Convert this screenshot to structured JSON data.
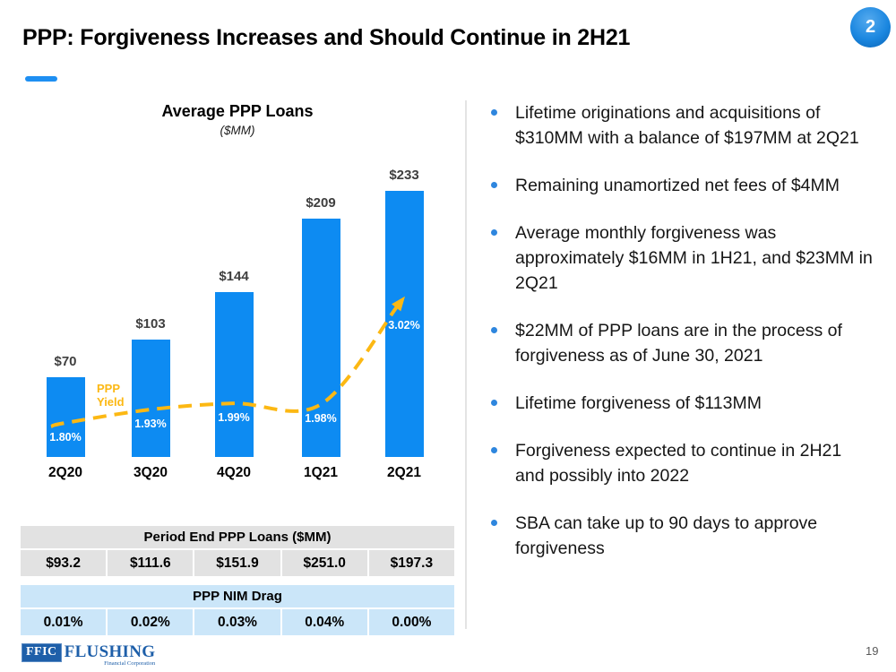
{
  "slide": {
    "title": "PPP: Forgiveness Increases and Should Continue in 2H21",
    "page_badge": "2",
    "page_number": "19"
  },
  "logo": {
    "abbr": "FFIC",
    "name": "FLUSHING",
    "subtitle": "Financial Corporation"
  },
  "colors": {
    "bar_blue": "#0D8BF2",
    "yield_gold": "#FCB813",
    "table1_bg": "#E2E2E2",
    "table2_bg": "#CBE6F9",
    "bullet_blue": "#2E86DE",
    "accent_underline": "#1E8FF2",
    "logo_blue": "#1E5FA9"
  },
  "chart_data": {
    "type": "bar",
    "title": "Average PPP Loans",
    "subtitle": "($MM)",
    "categories": [
      "2Q20",
      "3Q20",
      "4Q20",
      "1Q21",
      "2Q21"
    ],
    "series": [
      {
        "name": "Average PPP Loans ($MM)",
        "type": "bar",
        "values": [
          70,
          103,
          144,
          209,
          233
        ],
        "labels": [
          "$70",
          "$103",
          "$144",
          "$209",
          "$233"
        ],
        "color": "#0D8BF2"
      },
      {
        "name": "PPP Yield",
        "type": "line",
        "values": [
          1.8,
          1.93,
          1.99,
          1.98,
          3.02
        ],
        "labels": [
          "1.80%",
          "1.93%",
          "1.99%",
          "1.98%",
          "3.02%"
        ],
        "color": "#FCB813",
        "style": "dashed-with-arrow"
      }
    ],
    "line_label": "PPP\nYield",
    "ylim": [
      0,
      250
    ],
    "grid": false,
    "legend": "none"
  },
  "tables": [
    {
      "header": "Period End PPP Loans ($MM)",
      "values": [
        "$93.2",
        "$111.6",
        "$151.9",
        "$251.0",
        "$197.3"
      ],
      "bg": "#E2E2E2"
    },
    {
      "header": "PPP NIM Drag",
      "values": [
        "0.01%",
        "0.02%",
        "0.03%",
        "0.04%",
        "0.00%"
      ],
      "bg": "#CBE6F9"
    }
  ],
  "bullets": [
    "Lifetime originations and acquisitions of $310MM with a balance of $197MM at 2Q21",
    "Remaining unamortized net fees of $4MM",
    "Average monthly forgiveness was approximately $16MM in 1H21, and $23MM in 2Q21",
    "$22MM of PPP loans are in the process of forgiveness as of June 30, 2021",
    "Lifetime forgiveness of $113MM",
    "Forgiveness expected to continue in 2H21 and possibly into 2022",
    "SBA can take up to 90 days to approve forgiveness"
  ]
}
